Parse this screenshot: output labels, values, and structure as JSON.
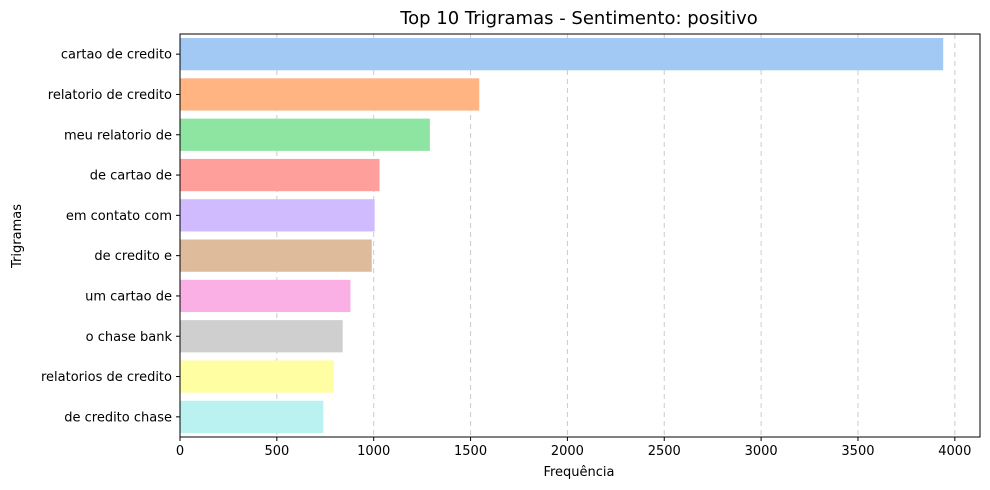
{
  "chart_data": {
    "type": "bar",
    "orientation": "horizontal",
    "title": "Top 10 Trigramas - Sentimento: positivo",
    "xlabel": "Frequência",
    "ylabel": "Trigramas",
    "xlim": [
      0,
      4130
    ],
    "xticks": [
      0,
      500,
      1000,
      1500,
      2000,
      2500,
      3000,
      3500,
      4000
    ],
    "grid": "x-dashed",
    "categories": [
      "cartao de credito",
      "relatorio de credito",
      "meu relatorio de",
      "de cartao de",
      "em contato com",
      "de credito e",
      "um cartao de",
      "o chase bank",
      "relatorios de credito",
      "de credito chase"
    ],
    "values": [
      3940,
      1545,
      1290,
      1030,
      1005,
      990,
      880,
      840,
      795,
      740
    ],
    "colors": [
      "#a1c9f4",
      "#ffb482",
      "#8de5a1",
      "#ff9f9b",
      "#d0bbff",
      "#debb9b",
      "#fab0e4",
      "#cfcfcf",
      "#fffea3",
      "#b9f2f0"
    ]
  }
}
